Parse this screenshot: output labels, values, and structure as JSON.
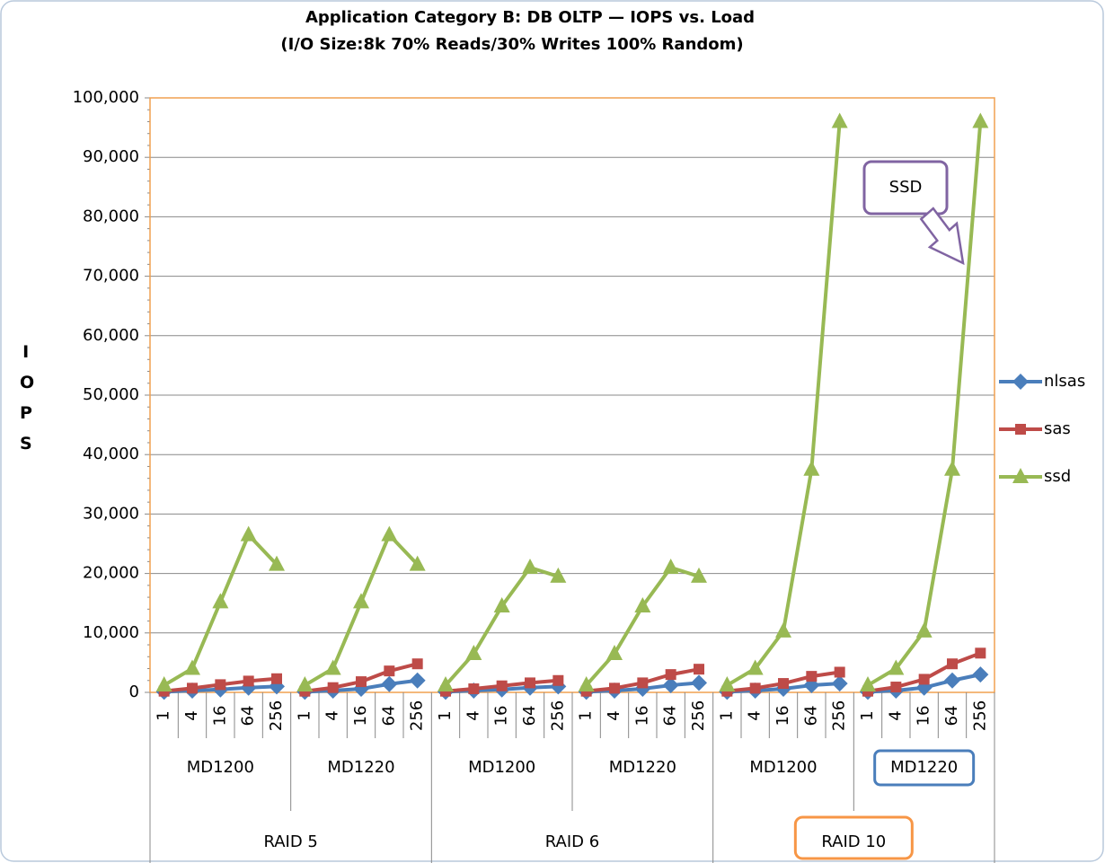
{
  "chart_data": {
    "type": "line",
    "title": [
      "Application Category B: DB OLTP — IOPS vs. Load",
      "(I/O Size:8k  70% Reads/30% Writes 100% Random)"
    ],
    "y_label": "IOPS",
    "categories": [
      "1",
      "4",
      "16",
      "64",
      "256",
      "1",
      "4",
      "16",
      "64",
      "256",
      "1",
      "4",
      "16",
      "64",
      "256",
      "1",
      "4",
      "16",
      "64",
      "256",
      "1",
      "4",
      "16",
      "64",
      "256",
      "1",
      "4",
      "16",
      "64",
      "256"
    ],
    "groups": [
      "MD1200",
      "MD1220",
      "MD1200",
      "MD1220",
      "MD1200",
      "MD1220"
    ],
    "supergroups": [
      "RAID 5",
      "RAID 6",
      "RAID 10"
    ],
    "series": [
      {
        "name": "nlsas",
        "color": "#4a7ebb",
        "marker": "diamond",
        "values": [
          100,
          300,
          500,
          800,
          1000,
          100,
          300,
          600,
          1400,
          2000,
          100,
          300,
          500,
          800,
          1000,
          100,
          300,
          600,
          1200,
          1600,
          100,
          300,
          600,
          1200,
          1500,
          100,
          300,
          800,
          2000,
          3000
        ]
      },
      {
        "name": "sas",
        "color": "#be4b48",
        "marker": "square",
        "values": [
          200,
          700,
          1300,
          1900,
          2300,
          200,
          800,
          1800,
          3600,
          4800,
          200,
          600,
          1100,
          1600,
          2000,
          200,
          700,
          1600,
          3000,
          3900,
          200,
          700,
          1500,
          2700,
          3400,
          200,
          900,
          2200,
          4800,
          6600
        ]
      },
      {
        "name": "ssd",
        "color": "#98b954",
        "marker": "triangle",
        "values": [
          1200,
          4000,
          15200,
          26500,
          21500,
          1200,
          4000,
          15200,
          26500,
          21500,
          1200,
          6500,
          14500,
          21000,
          19500,
          1200,
          6500,
          14500,
          21000,
          19500,
          1200,
          4000,
          10300,
          37500,
          96000,
          1200,
          4000,
          10300,
          37500,
          96000
        ]
      }
    ],
    "ylim": [
      0,
      100000
    ],
    "yticks": [
      0,
      {
        "value": 10000,
        "label": "10,000"
      },
      {
        "value": 20000,
        "label": "20,000"
      },
      {
        "value": 30000,
        "label": "30,000"
      },
      {
        "value": 40000,
        "label": "40,000"
      },
      {
        "value": 50000,
        "label": "50,000"
      },
      {
        "value": 60000,
        "label": "60,000"
      },
      {
        "value": 70000,
        "label": "70,000"
      },
      {
        "value": 80000,
        "label": "80,000"
      },
      {
        "value": 90000,
        "label": "90,000"
      },
      {
        "value": 100000,
        "label": "100,000"
      }
    ],
    "grid": true,
    "legend": "right",
    "annotations": [
      "SSD"
    ]
  }
}
